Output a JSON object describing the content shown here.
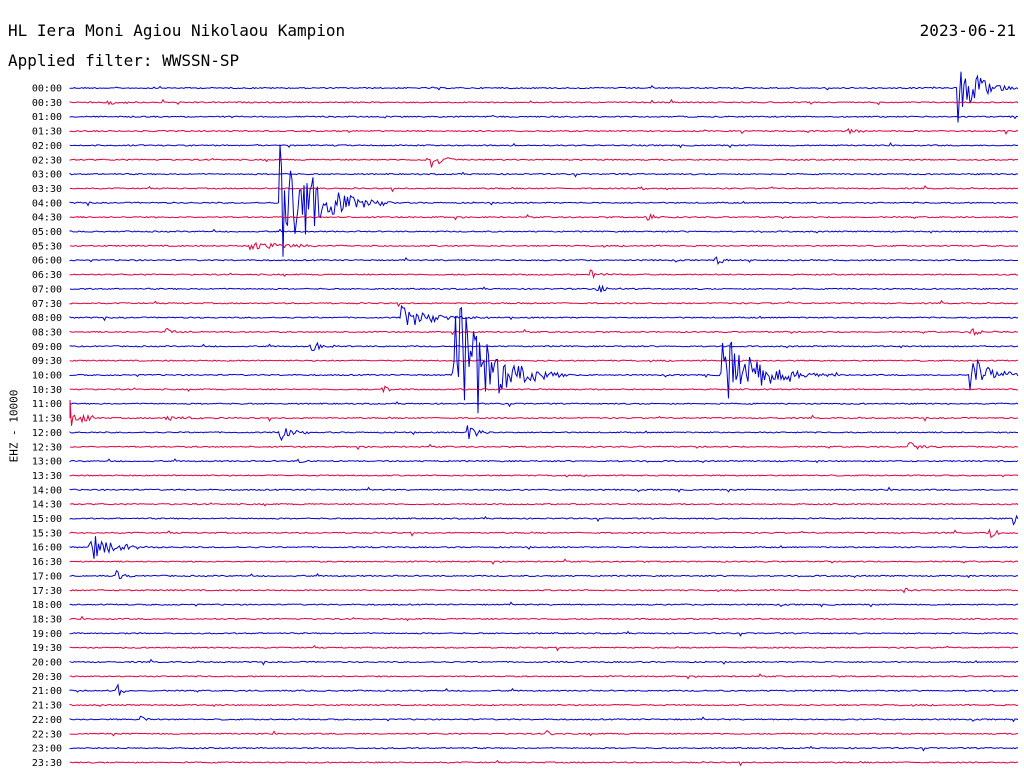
{
  "header": {
    "station": "HL Iera Moni Agiou Nikolaou Kampion",
    "date": "2023-06-21",
    "filter": "Applied filter: WWSSN-SP"
  },
  "axis": {
    "ylabel": "EHZ - 10000"
  },
  "colors": {
    "trace_a": "#0000cc",
    "trace_b": "#e0003c",
    "text": "#000000"
  },
  "chart_data": {
    "type": "line",
    "title": "HL Iera Moni Agiou Nikolaou Kampion",
    "ylabel": "EHZ - 10000",
    "row_labels": [
      "00:00",
      "00:30",
      "01:00",
      "01:30",
      "02:00",
      "02:30",
      "03:00",
      "03:30",
      "04:00",
      "04:30",
      "05:00",
      "05:30",
      "06:00",
      "06:30",
      "07:00",
      "07:30",
      "08:00",
      "08:30",
      "09:00",
      "09:30",
      "10:00",
      "10:30",
      "11:00",
      "11:30",
      "12:00",
      "12:30",
      "13:00",
      "13:30",
      "14:00",
      "14:30",
      "15:00",
      "15:30",
      "16:00",
      "16:30",
      "17:00",
      "17:30",
      "18:00",
      "18:30",
      "19:00",
      "19:30",
      "20:00",
      "20:30",
      "21:00",
      "21:30",
      "22:00",
      "22:30",
      "23:00",
      "23:30"
    ],
    "row_interval_minutes": 30,
    "grid": false,
    "events": [
      {
        "row": "00:00",
        "t": 0.937,
        "amp": 2.6,
        "dur": 0.018
      },
      {
        "row": "00:30",
        "t": 0.04,
        "amp": 0.3,
        "dur": 0.01
      },
      {
        "row": "01:30",
        "t": 0.82,
        "amp": 0.25,
        "dur": 0.01
      },
      {
        "row": "02:30",
        "t": 0.377,
        "amp": 0.9,
        "dur": 0.012
      },
      {
        "row": "03:30",
        "t": 0.6,
        "amp": 0.25,
        "dur": 0.005
      },
      {
        "row": "04:00",
        "t": 0.222,
        "amp": 5.6,
        "dur": 0.03
      },
      {
        "row": "04:30",
        "t": 0.61,
        "amp": 0.6,
        "dur": 0.006
      },
      {
        "row": "05:30",
        "t": 0.19,
        "amp": 0.35,
        "dur": 0.04
      },
      {
        "row": "06:00",
        "t": 0.68,
        "amp": 0.35,
        "dur": 0.01
      },
      {
        "row": "06:30",
        "t": 0.55,
        "amp": 0.3,
        "dur": 0.01
      },
      {
        "row": "07:00",
        "t": 0.555,
        "amp": 0.5,
        "dur": 0.008
      },
      {
        "row": "08:00",
        "t": 0.35,
        "amp": 0.8,
        "dur": 0.03
      },
      {
        "row": "08:30",
        "t": 0.1,
        "amp": 0.4,
        "dur": 0.01
      },
      {
        "row": "08:30",
        "t": 0.95,
        "amp": 0.3,
        "dur": 0.01
      },
      {
        "row": "09:00",
        "t": 0.254,
        "amp": 0.45,
        "dur": 0.01
      },
      {
        "row": "10:00",
        "t": 0.405,
        "amp": 7.6,
        "dur": 0.03
      },
      {
        "row": "10:00",
        "t": 0.687,
        "amp": 3.4,
        "dur": 0.03
      },
      {
        "row": "10:00",
        "t": 0.76,
        "amp": 0.5,
        "dur": 0.012
      },
      {
        "row": "10:00",
        "t": 0.95,
        "amp": 1.5,
        "dur": 0.02
      },
      {
        "row": "10:30",
        "t": 0.33,
        "amp": 0.4,
        "dur": 0.006
      },
      {
        "row": "11:30",
        "t": 0.0,
        "amp": 1.3,
        "dur": 0.01
      },
      {
        "row": "11:30",
        "t": 0.1,
        "amp": 0.2,
        "dur": 0.02
      },
      {
        "row": "12:00",
        "t": 0.222,
        "amp": 0.6,
        "dur": 0.012
      },
      {
        "row": "12:00",
        "t": 0.42,
        "amp": 0.6,
        "dur": 0.01
      },
      {
        "row": "12:30",
        "t": 0.885,
        "amp": 0.4,
        "dur": 0.01
      },
      {
        "row": "13:00",
        "t": 0.24,
        "amp": 0.3,
        "dur": 0.005
      },
      {
        "row": "15:00",
        "t": 0.995,
        "amp": 0.5,
        "dur": 0.005
      },
      {
        "row": "15:30",
        "t": 0.97,
        "amp": 0.6,
        "dur": 0.005
      },
      {
        "row": "16:00",
        "t": 0.02,
        "amp": 1.1,
        "dur": 0.02
      },
      {
        "row": "17:00",
        "t": 0.05,
        "amp": 0.4,
        "dur": 0.006
      },
      {
        "row": "17:30",
        "t": 0.88,
        "amp": 0.3,
        "dur": 0.005
      },
      {
        "row": "21:00",
        "t": 0.05,
        "amp": 0.5,
        "dur": 0.006
      },
      {
        "row": "22:00",
        "t": 0.075,
        "amp": 0.3,
        "dur": 0.006
      },
      {
        "row": "22:30",
        "t": 0.5,
        "amp": 0.5,
        "dur": 0.005
      }
    ]
  }
}
